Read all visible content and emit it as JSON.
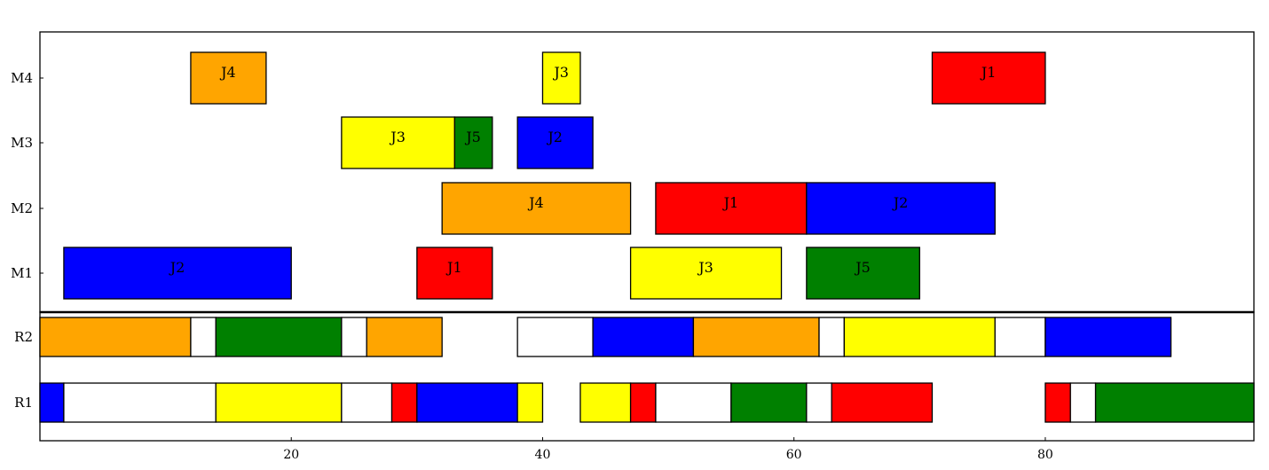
{
  "chart_data": {
    "type": "gantt",
    "xlim": [
      0,
      96.6
    ],
    "x_ticks": [
      20,
      40,
      60,
      80
    ],
    "colors": {
      "J1": "#ff0000",
      "J2": "#0000ff",
      "J3": "#ffff00",
      "J4": "#ffa500",
      "J5": "#008000",
      "idle": "#ffffff"
    },
    "machine_panel": {
      "rows": [
        "M1",
        "M2",
        "M3",
        "M4"
      ],
      "tasks": [
        {
          "row": "M1",
          "job": "J2",
          "start": 1.9,
          "end": 20.0
        },
        {
          "row": "M1",
          "job": "J1",
          "start": 30.0,
          "end": 36.0
        },
        {
          "row": "M1",
          "job": "J3",
          "start": 47.0,
          "end": 59.0
        },
        {
          "row": "M1",
          "job": "J5",
          "start": 61.0,
          "end": 70.0
        },
        {
          "row": "M2",
          "job": "J4",
          "start": 32.0,
          "end": 47.0
        },
        {
          "row": "M2",
          "job": "J1",
          "start": 49.0,
          "end": 61.0
        },
        {
          "row": "M2",
          "job": "J2",
          "start": 61.0,
          "end": 76.0
        },
        {
          "row": "M3",
          "job": "J3",
          "start": 24.0,
          "end": 33.0
        },
        {
          "row": "M3",
          "job": "J5",
          "start": 33.0,
          "end": 36.0
        },
        {
          "row": "M3",
          "job": "J2",
          "start": 38.0,
          "end": 44.0
        },
        {
          "row": "M4",
          "job": "J4",
          "start": 12.0,
          "end": 18.0
        },
        {
          "row": "M4",
          "job": "J3",
          "start": 40.0,
          "end": 43.0
        },
        {
          "row": "M4",
          "job": "J1",
          "start": 71.0,
          "end": 80.0
        }
      ]
    },
    "resource_panel": {
      "rows": [
        "R1",
        "R2"
      ],
      "tasks": [
        {
          "row": "R1",
          "job": "J2",
          "start": 0.0,
          "end": 1.9
        },
        {
          "row": "R1",
          "job": "idle",
          "start": 1.9,
          "end": 14.0
        },
        {
          "row": "R1",
          "job": "J3",
          "start": 14.0,
          "end": 24.0
        },
        {
          "row": "R1",
          "job": "idle",
          "start": 24.0,
          "end": 28.0
        },
        {
          "row": "R1",
          "job": "J1",
          "start": 28.0,
          "end": 30.0
        },
        {
          "row": "R1",
          "job": "J2",
          "start": 30.0,
          "end": 38.0
        },
        {
          "row": "R1",
          "job": "J3",
          "start": 38.0,
          "end": 40.0
        },
        {
          "row": "R1",
          "job": "J3",
          "start": 43.0,
          "end": 47.0
        },
        {
          "row": "R1",
          "job": "J1",
          "start": 47.0,
          "end": 49.0
        },
        {
          "row": "R1",
          "job": "idle",
          "start": 49.0,
          "end": 55.0
        },
        {
          "row": "R1",
          "job": "J5",
          "start": 55.0,
          "end": 61.0
        },
        {
          "row": "R1",
          "job": "idle",
          "start": 61.0,
          "end": 63.0
        },
        {
          "row": "R1",
          "job": "J1",
          "start": 63.0,
          "end": 71.0
        },
        {
          "row": "R1",
          "job": "J1",
          "start": 80.0,
          "end": 82.0
        },
        {
          "row": "R1",
          "job": "idle",
          "start": 82.0,
          "end": 84.0
        },
        {
          "row": "R1",
          "job": "J5",
          "start": 84.0,
          "end": 96.6
        },
        {
          "row": "R2",
          "job": "J4",
          "start": 0.0,
          "end": 12.0
        },
        {
          "row": "R2",
          "job": "idle",
          "start": 12.0,
          "end": 14.0
        },
        {
          "row": "R2",
          "job": "J5",
          "start": 14.0,
          "end": 24.0
        },
        {
          "row": "R2",
          "job": "idle",
          "start": 24.0,
          "end": 26.0
        },
        {
          "row": "R2",
          "job": "J4",
          "start": 26.0,
          "end": 32.0
        },
        {
          "row": "R2",
          "job": "idle",
          "start": 38.0,
          "end": 44.0
        },
        {
          "row": "R2",
          "job": "J2",
          "start": 44.0,
          "end": 52.0
        },
        {
          "row": "R2",
          "job": "J4",
          "start": 52.0,
          "end": 62.0
        },
        {
          "row": "R2",
          "job": "idle",
          "start": 62.0,
          "end": 64.0
        },
        {
          "row": "R2",
          "job": "J3",
          "start": 64.0,
          "end": 76.0
        },
        {
          "row": "R2",
          "job": "idle",
          "start": 76.0,
          "end": 80.0
        },
        {
          "row": "R2",
          "job": "J2",
          "start": 80.0,
          "end": 90.0
        }
      ]
    }
  }
}
